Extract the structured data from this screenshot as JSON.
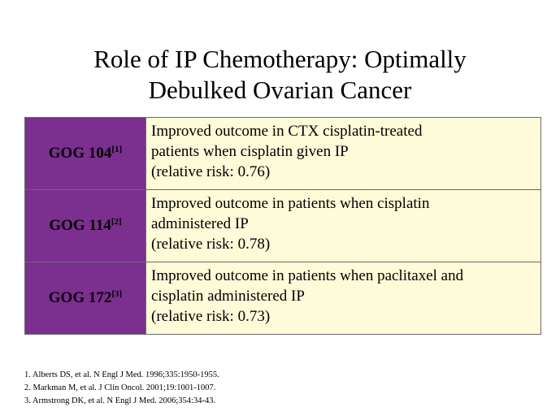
{
  "title": {
    "line1": "Role of IP Chemotherapy: Optimally",
    "line2": "Debulked Ovarian Cancer"
  },
  "trials": [
    {
      "name": "GOG 104",
      "ref": "[1]",
      "lines": [
        "Improved outcome in CTX cisplatin-treated",
        "patients when cisplatin given IP",
        "(relative risk: 0.76)"
      ]
    },
    {
      "name": "GOG 114",
      "ref": "[2]",
      "lines": [
        "Improved outcome in patients when cisplatin",
        "administered IP",
        "(relative risk: 0.78)"
      ]
    },
    {
      "name": "GOG 172",
      "ref": "[3]",
      "lines": [
        "Improved outcome in patients when paclitaxel and",
        "cisplatin administered IP",
        "(relative risk: 0.73)"
      ]
    }
  ],
  "references": [
    "1. Alberts DS, et al. N Engl J Med. 1996;335:1950-1955.",
    "2. Markman M, et al. J Clin Oncol. 2001;19:1001-1007.",
    "3. Armstrong DK, et al. N Engl J Med. 2006;354:34-43."
  ],
  "colors": {
    "label_cell": "#7b2f8e",
    "content_cell": "#fdfbd8",
    "border": "#6b6b6b"
  }
}
